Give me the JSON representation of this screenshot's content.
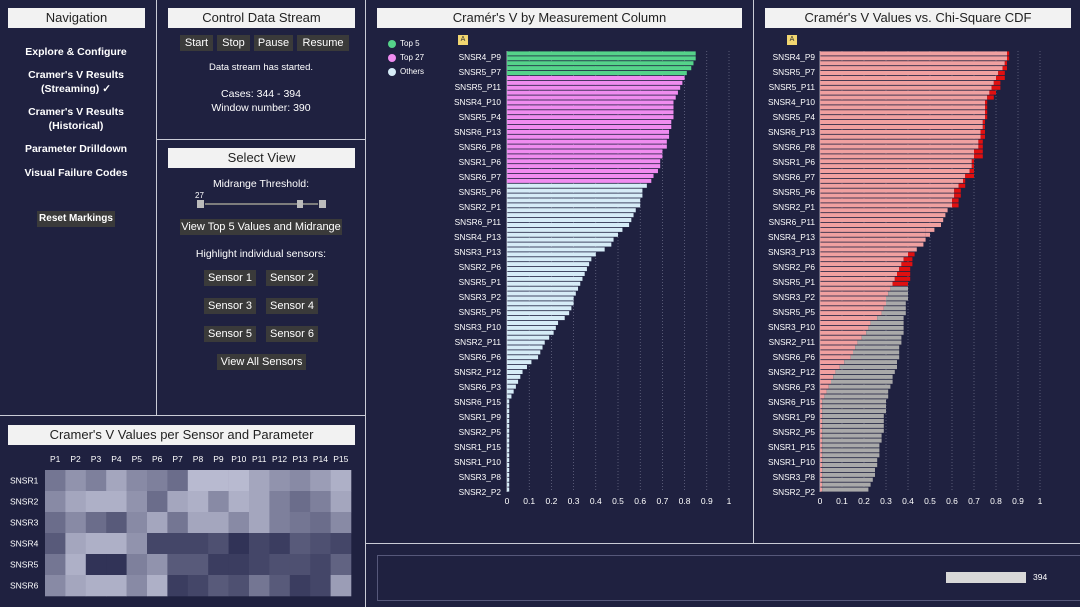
{
  "nav": {
    "title": "Navigation",
    "items": [
      {
        "label": "Explore & Configure"
      },
      {
        "label": "Cramer's V Results\n(Streaming) ✓"
      },
      {
        "label": "Cramer's V Results\n(Historical)"
      },
      {
        "label": "Parameter Drilldown"
      },
      {
        "label": "Visual Failure Codes"
      }
    ],
    "reset_label": "Reset Markings"
  },
  "control": {
    "title": "Control Data Stream",
    "buttons": [
      "Start",
      "Stop",
      "Pause",
      "Resume"
    ],
    "status": "Data stream has started.",
    "cases": "Cases: 344 - 394",
    "window": "Window number: 390"
  },
  "select_view": {
    "title": "Select View",
    "threshold_label": "Midrange Threshold:",
    "threshold_value": "27",
    "top5_button": "View Top 5 Values and Midrange",
    "highlight_label": "Highlight individual sensors:",
    "sensors": [
      "Sensor 1",
      "Sensor 2",
      "Sensor 3",
      "Sensor 4",
      "Sensor 5",
      "Sensor 6"
    ],
    "all_button": "View All Sensors"
  },
  "heatmap": {
    "title": "Cramer's V Values per Sensor and Parameter",
    "cols": [
      "P1",
      "P2",
      "P3",
      "P4",
      "P5",
      "P6",
      "P7",
      "P8",
      "P9",
      "P10",
      "P11",
      "P12",
      "P13",
      "P14",
      "P15"
    ],
    "rows": [
      "SNSR1",
      "SNSR2",
      "SNSR3",
      "SNSR4",
      "SNSR5",
      "SNSR6"
    ],
    "values": [
      [
        0.55,
        0.4,
        0.5,
        0.3,
        0.45,
        0.5,
        0.6,
        0.2,
        0.2,
        0.2,
        0.3,
        0.4,
        0.45,
        0.35,
        0.25
      ],
      [
        0.45,
        0.3,
        0.25,
        0.25,
        0.4,
        0.6,
        0.3,
        0.25,
        0.45,
        0.25,
        0.3,
        0.5,
        0.6,
        0.5,
        0.3
      ],
      [
        0.6,
        0.45,
        0.6,
        0.7,
        0.45,
        0.3,
        0.55,
        0.3,
        0.3,
        0.45,
        0.3,
        0.5,
        0.55,
        0.6,
        0.45
      ],
      [
        0.7,
        0.3,
        0.25,
        0.25,
        0.4,
        0.8,
        0.8,
        0.8,
        0.75,
        0.9,
        0.8,
        0.85,
        0.7,
        0.75,
        0.8
      ],
      [
        0.55,
        0.25,
        0.9,
        0.9,
        0.5,
        0.4,
        0.7,
        0.7,
        0.85,
        0.85,
        0.8,
        0.75,
        0.75,
        0.8,
        0.65
      ],
      [
        0.45,
        0.3,
        0.25,
        0.25,
        0.45,
        0.25,
        0.85,
        0.8,
        0.7,
        0.75,
        0.55,
        0.7,
        0.85,
        0.8,
        0.35
      ]
    ]
  },
  "bar_chart": {
    "title": "Cramér's V by Measurement Column",
    "badge": "A",
    "legend": [
      {
        "label": "Top 5",
        "color": "#55d38a"
      },
      {
        "label": "Top 27",
        "color": "#f08cf0"
      },
      {
        "label": "Others",
        "color": "#d6ecf7"
      }
    ],
    "tick_labels": [
      "0",
      "0.1",
      "0.2",
      "0.3",
      "0.4",
      "0.5",
      "0.6",
      "0.7",
      "0.8",
      "0.9",
      "1"
    ]
  },
  "cdf_chart": {
    "title": "Cramér's V Values vs. Chi-Square CDF",
    "badge": "A",
    "tick_labels": [
      "0",
      "0.1",
      "0.2",
      "0.3",
      "0.4",
      "0.5",
      "0.6",
      "0.7",
      "0.8",
      "0.9",
      "1"
    ]
  },
  "chart_data": [
    {
      "type": "bar",
      "title": "Cramér's V by Measurement Column",
      "orientation": "horizontal",
      "xlim": [
        0,
        1
      ],
      "grid": true,
      "legend_position": "top-left",
      "series": [
        {
          "name": "Top 5",
          "color": "#55d38a"
        },
        {
          "name": "Top 27",
          "color": "#f08cf0"
        },
        {
          "name": "Others",
          "color": "#d6ecf7"
        }
      ],
      "category_labels": [
        "SNSR4_P9",
        "SNSR5_P7",
        "SNSR5_P11",
        "SNSR4_P10",
        "SNSR5_P4",
        "SNSR6_P13",
        "SNSR6_P8",
        "SNSR1_P6",
        "SNSR6_P7",
        "SNSR5_P6",
        "SNSR2_P1",
        "SNSR6_P11",
        "SNSR4_P13",
        "SNSR3_P13",
        "SNSR2_P6",
        "SNSR5_P1",
        "SNSR3_P2",
        "SNSR5_P5",
        "SNSR3_P10",
        "SNSR2_P11",
        "SNSR6_P6",
        "SNSR2_P12",
        "SNSR6_P3",
        "SNSR6_P15",
        "SNSR1_P9",
        "SNSR2_P5",
        "SNSR1_P15",
        "SNSR1_P10",
        "SNSR3_P8",
        "SNSR2_P2"
      ],
      "values": [
        0.85,
        0.85,
        0.84,
        0.83,
        0.81,
        0.8,
        0.79,
        0.78,
        0.77,
        0.76,
        0.75,
        0.75,
        0.75,
        0.75,
        0.74,
        0.74,
        0.73,
        0.73,
        0.72,
        0.72,
        0.7,
        0.7,
        0.69,
        0.69,
        0.68,
        0.66,
        0.65,
        0.63,
        0.61,
        0.61,
        0.6,
        0.6,
        0.58,
        0.57,
        0.56,
        0.55,
        0.52,
        0.5,
        0.48,
        0.47,
        0.44,
        0.4,
        0.38,
        0.37,
        0.36,
        0.35,
        0.34,
        0.33,
        0.32,
        0.31,
        0.3,
        0.3,
        0.29,
        0.28,
        0.26,
        0.23,
        0.22,
        0.21,
        0.19,
        0.17,
        0.16,
        0.15,
        0.14,
        0.11,
        0.09,
        0.07,
        0.06,
        0.05,
        0.04,
        0.03,
        0.02,
        0.01,
        0.01,
        0.01,
        0.01,
        0.01,
        0.01,
        0.01,
        0.01,
        0.01,
        0.01,
        0.01,
        0.01,
        0.01,
        0.01,
        0.01,
        0.01,
        0.01,
        0.01,
        0.01
      ]
    },
    {
      "type": "bar",
      "title": "Cramér's V Values vs. Chi-Square CDF",
      "orientation": "horizontal",
      "xlim": [
        0,
        1
      ],
      "grid": true,
      "series": [
        {
          "name": "Cramer's V",
          "color": "#f0a0a0"
        },
        {
          "name": "CDF",
          "color": "#e01010"
        },
        {
          "name": "CDF",
          "color": "#a9a9a9"
        }
      ],
      "category_labels": [
        "SNSR4_P9",
        "SNSR5_P7",
        "SNSR5_P11",
        "SNSR4_P10",
        "SNSR5_P4",
        "SNSR6_P13",
        "SNSR6_P8",
        "SNSR1_P6",
        "SNSR6_P7",
        "SNSR5_P6",
        "SNSR2_P1",
        "SNSR6_P11",
        "SNSR4_P13",
        "SNSR3_P13",
        "SNSR2_P6",
        "SNSR5_P1",
        "SNSR3_P2",
        "SNSR5_P5",
        "SNSR3_P10",
        "SNSR2_P11",
        "SNSR6_P6",
        "SNSR2_P12",
        "SNSR6_P3",
        "SNSR6_P15",
        "SNSR1_P9",
        "SNSR2_P5",
        "SNSR1_P15",
        "SNSR1_P10",
        "SNSR3_P8",
        "SNSR2_P2"
      ],
      "cramers_v": [
        0.85,
        0.85,
        0.84,
        0.83,
        0.81,
        0.8,
        0.79,
        0.78,
        0.77,
        0.76,
        0.75,
        0.75,
        0.75,
        0.75,
        0.74,
        0.74,
        0.73,
        0.73,
        0.72,
        0.72,
        0.7,
        0.7,
        0.69,
        0.69,
        0.68,
        0.66,
        0.65,
        0.63,
        0.61,
        0.61,
        0.6,
        0.6,
        0.58,
        0.57,
        0.56,
        0.55,
        0.52,
        0.5,
        0.48,
        0.47,
        0.44,
        0.4,
        0.38,
        0.37,
        0.36,
        0.35,
        0.34,
        0.33,
        0.32,
        0.31,
        0.3,
        0.3,
        0.29,
        0.28,
        0.26,
        0.23,
        0.22,
        0.21,
        0.19,
        0.17,
        0.16,
        0.15,
        0.14,
        0.11,
        0.09,
        0.07,
        0.06,
        0.05,
        0.04,
        0.03,
        0.02,
        0.01,
        0.01,
        0.01,
        0.01,
        0.01,
        0.01,
        0.01,
        0.01,
        0.01,
        0.01,
        0.01,
        0.01,
        0.01,
        0.01,
        0.01,
        0.01,
        0.01,
        0.01,
        0.01
      ],
      "cdf": [
        0.86,
        0.86,
        0.85,
        0.85,
        0.84,
        0.84,
        0.82,
        0.82,
        0.8,
        0.79,
        0.76,
        0.76,
        0.76,
        0.76,
        0.75,
        0.75,
        0.75,
        0.75,
        0.74,
        0.74,
        0.74,
        0.74,
        0.7,
        0.7,
        0.7,
        0.7,
        0.66,
        0.66,
        0.64,
        0.64,
        0.63,
        0.63,
        0.55,
        0.55,
        0.5,
        0.5,
        0.48,
        0.48,
        0.45,
        0.45,
        0.44,
        0.43,
        0.42,
        0.42,
        0.41,
        0.41,
        0.41,
        0.4,
        0.4,
        0.4,
        0.4,
        0.39,
        0.39,
        0.39,
        0.38,
        0.38,
        0.38,
        0.38,
        0.37,
        0.37,
        0.36,
        0.36,
        0.36,
        0.35,
        0.35,
        0.34,
        0.33,
        0.33,
        0.32,
        0.31,
        0.31,
        0.3,
        0.3,
        0.3,
        0.29,
        0.29,
        0.29,
        0.29,
        0.28,
        0.28,
        0.27,
        0.27,
        0.27,
        0.26,
        0.26,
        0.25,
        0.25,
        0.24,
        0.23,
        0.22
      ]
    }
  ],
  "status_bar": {
    "value": "394",
    "level": 0.95
  },
  "colors": {
    "background": "#1f2140",
    "panel_border": "#c9cbd6",
    "top5": "#55d38a",
    "top27": "#f08cf0",
    "others": "#d6ecf7",
    "cdf_pink": "#f0a0a0",
    "cdf_red": "#e01010",
    "cdf_gray": "#a9a9a9"
  }
}
